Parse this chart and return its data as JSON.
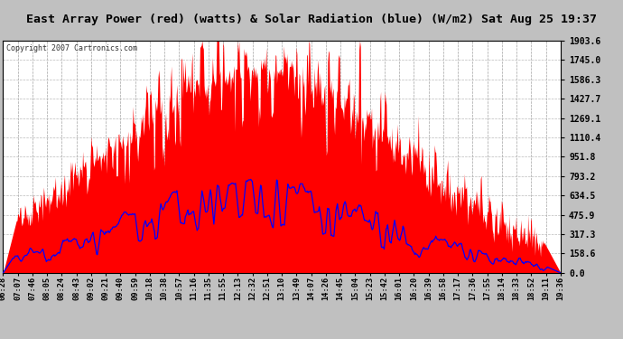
{
  "title": "East Array Power (red) (watts) & Solar Radiation (blue) (W/m2) Sat Aug 25 19:37",
  "copyright": "Copyright 2007 Cartronics.com",
  "ymax": 1903.6,
  "yticks": [
    0.0,
    158.6,
    317.3,
    475.9,
    634.5,
    793.2,
    951.8,
    1110.4,
    1269.1,
    1427.7,
    1586.3,
    1745.0,
    1903.6
  ],
  "bg_color": "#ffffff",
  "grid_color": "#aaaaaa",
  "red_color": "#ff0000",
  "blue_color": "#0000ff",
  "title_bg": "#c0c0c0",
  "xtick_labels": [
    "06:28",
    "07:07",
    "07:46",
    "08:05",
    "08:24",
    "08:43",
    "09:02",
    "09:21",
    "09:40",
    "09:59",
    "10:18",
    "10:38",
    "10:57",
    "11:16",
    "11:35",
    "11:55",
    "12:13",
    "12:32",
    "12:51",
    "13:10",
    "13:49",
    "14:07",
    "14:26",
    "14:45",
    "15:04",
    "15:23",
    "15:42",
    "16:01",
    "16:20",
    "16:39",
    "16:58",
    "17:17",
    "17:36",
    "17:55",
    "18:14",
    "18:33",
    "18:52",
    "19:11",
    "19:36"
  ]
}
